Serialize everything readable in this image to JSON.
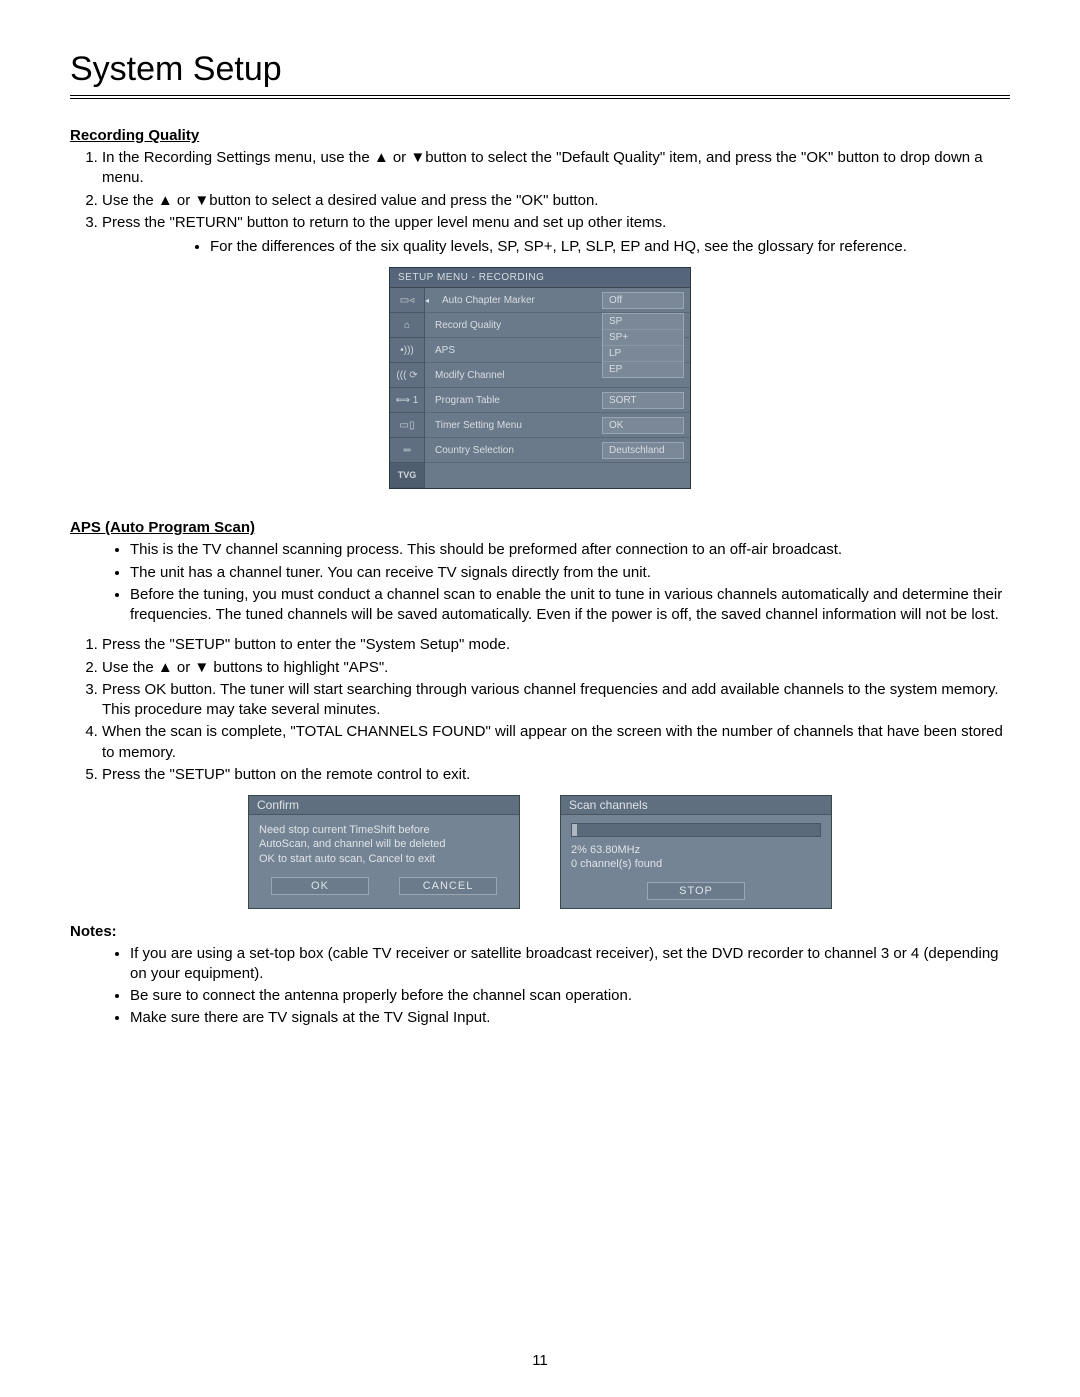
{
  "page_title": "System Setup",
  "page_number": "11",
  "recording_quality": {
    "heading": "Recording Quality",
    "steps": [
      "In the Recording Settings menu, use the ▲ or ▼button to select the \"Default Quality\" item, and press the \"OK\" button to drop down a menu.",
      "Use the ▲ or ▼button to select a desired value and press the \"OK\" button.",
      "Press the \"RETURN\" button to return to the upper level menu and set up other items."
    ],
    "sub_bullet": "For the differences of the six quality levels, SP, SP+, LP, SLP, EP and HQ, see the glossary for reference."
  },
  "setup_menu": {
    "title": "SETUP MENU - RECORDING",
    "sidebar_icons": [
      "▭◃",
      "⌂",
      "•)))",
      "((( ⟳",
      "⟺ 1",
      "▭▯",
      "═",
      "TVG"
    ],
    "rows": [
      {
        "label": "Auto Chapter Marker",
        "value": "Off",
        "has_arrow": true
      },
      {
        "label": "Record Quality",
        "value": "SP",
        "dropdown": [
          "SP",
          "SP+",
          "LP",
          "EP"
        ]
      },
      {
        "label": "APS",
        "value": ""
      },
      {
        "label": "Modify Channel",
        "value": ""
      },
      {
        "label": "Program Table",
        "value": "SORT"
      },
      {
        "label": "Timer Setting Menu",
        "value": "OK"
      },
      {
        "label": "Country Selection",
        "value": "Deutschland"
      }
    ]
  },
  "aps": {
    "heading": "APS (Auto Program Scan)",
    "bullets": [
      "This is the TV channel scanning process.  This should be preformed after connection to an off-air broadcast.",
      "The unit has a channel tuner. You can receive TV signals directly from the unit.",
      "Before the tuning, you must conduct a channel scan to enable the unit to tune in various channels automatically and determine their frequencies. The tuned channels will be saved automatically. Even if the power is off, the saved channel information will not be lost."
    ],
    "steps": [
      "Press the \"SETUP\" button to enter the \"System Setup\" mode.",
      "Use the ▲ or ▼ buttons to highlight \"APS\".",
      "Press OK button. The tuner will start searching through various channel frequencies and add available channels to the system memory. This procedure may take several minutes.",
      "When the scan is complete, \"TOTAL CHANNELS FOUND\" will appear on the screen with the number of channels that have been stored to memory.",
      "Press the \"SETUP\" button on the remote control to exit."
    ]
  },
  "confirm_dialog": {
    "title": "Confirm",
    "line1": "Need stop current TimeShift before",
    "line2": "AutoScan, and channel will be deleted",
    "line3": "OK to start auto scan, Cancel to exit",
    "ok": "OK",
    "cancel": "CANCEL"
  },
  "scan_dialog": {
    "title": "Scan channels",
    "progress_pct": 2,
    "status_line1": "2% 63.80MHz",
    "status_line2": "0  channel(s) found",
    "stop": "STOP"
  },
  "notes": {
    "heading": "Notes:",
    "bullets": [
      "If you are using a set-top box (cable TV receiver or satellite broadcast receiver), set the DVD recorder to channel 3 or 4 (depending on your equipment).",
      "Be sure to connect the antenna properly before the channel scan operation.",
      "Make sure there are TV signals at the TV Signal Input."
    ]
  }
}
